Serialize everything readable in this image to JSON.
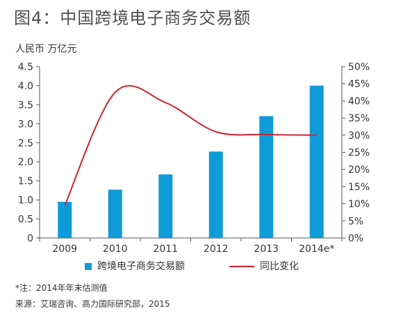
{
  "header": {
    "title": "图4：中国跨境电子商务交易额",
    "unit": "人民币 万亿元"
  },
  "notes": {
    "note": "*注：2014年年末估测值",
    "source": "来源：艾瑞咨询、高力国际研究部，2015"
  },
  "colors": {
    "bar": "#0f9bd7",
    "line": "#d0202e",
    "axis": "#555555"
  },
  "chart_data": {
    "type": "bar",
    "categories": [
      "2009",
      "2010",
      "2011",
      "2012",
      "2013",
      "2014e*"
    ],
    "series": [
      {
        "name": "跨境电子商务交易额",
        "type": "bar",
        "axis": "left",
        "values": [
          0.95,
          1.27,
          1.67,
          2.27,
          3.2,
          4.0
        ]
      },
      {
        "name": "同比变化",
        "type": "line",
        "axis": "right",
        "values": [
          9.5,
          42.5,
          39.5,
          31.0,
          30.2,
          30.0
        ]
      }
    ],
    "ylim": [
      0,
      4.5
    ],
    "y2lim": [
      0,
      50
    ],
    "yticks": [
      "0",
      "0.5",
      "1.0",
      "1.5",
      "2.0",
      "2.5",
      "3.0",
      "3.5",
      "4.0",
      "4.5"
    ],
    "y2ticks": [
      "0%",
      "5%",
      "10%",
      "15%",
      "20%",
      "25%",
      "30%",
      "35%",
      "40%",
      "45%",
      "50%"
    ],
    "legend_position": "bottom",
    "grid": false
  }
}
